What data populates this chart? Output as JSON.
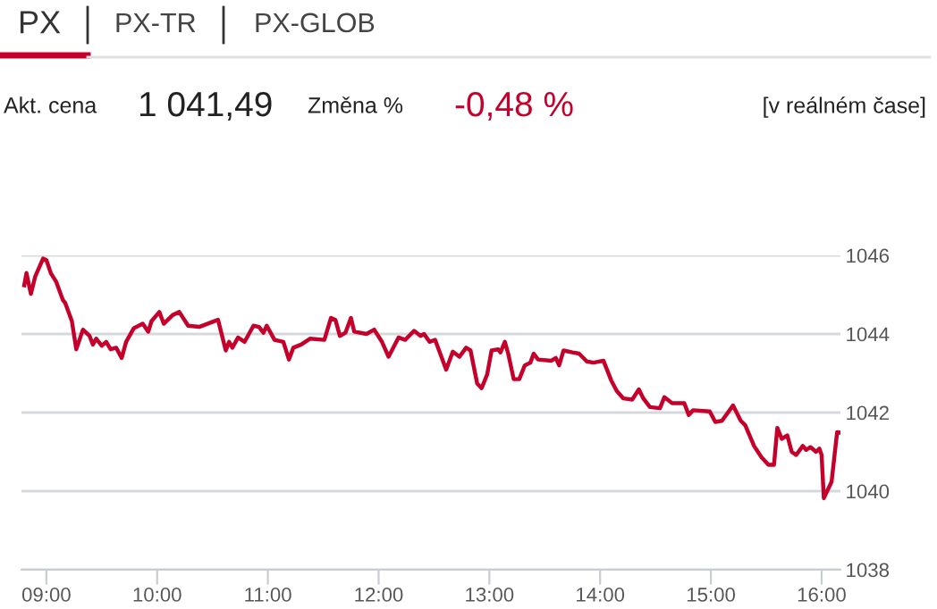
{
  "chart_data": {
    "type": "line",
    "annotations": [
      "PX",
      "PX-TR",
      "PX-GLOB",
      "Akt. cena",
      "1 041,49",
      "Změna %",
      "-0,48 %",
      "[v reálném čase]"
    ],
    "x": [
      8.8,
      8.82,
      8.86,
      8.9,
      8.97,
      9.0,
      9.04,
      9.09,
      9.15,
      9.17,
      9.23,
      9.27,
      9.33,
      9.39,
      9.42,
      9.45,
      9.5,
      9.54,
      9.58,
      9.63,
      9.68,
      9.72,
      9.79,
      9.87,
      9.92,
      9.95,
      10.02,
      10.06,
      10.14,
      10.2,
      10.28,
      10.38,
      10.55,
      10.62,
      10.65,
      10.68,
      10.73,
      10.79,
      10.87,
      10.92,
      10.96,
      10.99,
      11.06,
      11.14,
      11.19,
      11.23,
      11.3,
      11.38,
      11.51,
      11.57,
      11.61,
      11.65,
      11.7,
      11.75,
      11.78,
      11.89,
      11.96,
      12.03,
      12.09,
      12.18,
      12.24,
      12.32,
      12.38,
      12.41,
      12.46,
      12.51,
      12.61,
      12.67,
      12.73,
      12.79,
      12.83,
      12.89,
      12.93,
      12.98,
      13.02,
      13.08,
      13.1,
      13.14,
      13.17,
      13.22,
      13.27,
      13.32,
      13.37,
      13.4,
      13.44,
      13.56,
      13.6,
      13.63,
      13.67,
      13.75,
      13.81,
      13.88,
      13.94,
      14.03,
      14.1,
      14.15,
      14.21,
      14.29,
      14.35,
      14.39,
      14.45,
      14.54,
      14.58,
      14.65,
      14.76,
      14.8,
      14.84,
      14.99,
      15.04,
      15.1,
      15.2,
      15.27,
      15.31,
      15.39,
      15.46,
      15.52,
      15.57,
      15.6,
      15.64,
      15.69,
      15.73,
      15.77,
      15.83,
      15.86,
      15.9,
      15.95,
      15.98,
      16.0,
      16.02,
      16.09,
      16.14,
      16.17
    ],
    "series": [
      {
        "color": "#c4002b",
        "values": [
          1045.24,
          1045.55,
          1045.02,
          1045.47,
          1045.92,
          1045.88,
          1045.55,
          1045.32,
          1044.86,
          1044.79,
          1044.33,
          1043.61,
          1044.11,
          1043.95,
          1043.73,
          1043.88,
          1043.7,
          1043.8,
          1043.61,
          1043.65,
          1043.39,
          1043.8,
          1044.15,
          1044.26,
          1044.06,
          1044.33,
          1044.56,
          1044.26,
          1044.48,
          1044.56,
          1044.21,
          1044.18,
          1044.36,
          1043.58,
          1043.8,
          1043.65,
          1043.91,
          1043.8,
          1044.21,
          1044.18,
          1044.03,
          1044.21,
          1043.85,
          1043.8,
          1043.35,
          1043.65,
          1043.73,
          1043.88,
          1043.85,
          1044.41,
          1044.36,
          1043.95,
          1044.03,
          1044.41,
          1044.06,
          1044.0,
          1044.11,
          1043.8,
          1043.42,
          1043.91,
          1043.85,
          1044.08,
          1043.95,
          1044.0,
          1043.8,
          1043.85,
          1043.09,
          1043.55,
          1043.42,
          1043.65,
          1043.58,
          1042.74,
          1042.62,
          1042.97,
          1043.58,
          1043.61,
          1043.53,
          1043.8,
          1043.5,
          1042.85,
          1042.85,
          1043.2,
          1043.27,
          1043.5,
          1043.35,
          1043.32,
          1043.39,
          1043.2,
          1043.58,
          1043.53,
          1043.5,
          1043.3,
          1043.27,
          1043.32,
          1042.82,
          1042.55,
          1042.36,
          1042.33,
          1042.59,
          1042.36,
          1042.14,
          1042.11,
          1042.39,
          1042.24,
          1042.24,
          1041.94,
          1042.06,
          1042.03,
          1041.76,
          1041.79,
          1042.18,
          1041.79,
          1041.68,
          1041.15,
          1040.85,
          1040.67,
          1040.67,
          1041.61,
          1041.33,
          1041.42,
          1041.0,
          1040.92,
          1041.15,
          1041.05,
          1041.12,
          1041.0,
          1041.08,
          1040.92,
          1039.82,
          1040.24,
          1041.5,
          1041.49
        ]
      }
    ],
    "xlim": [
      8.775,
      16.17
    ],
    "xticks": [
      {
        "value": 9,
        "label": "09:00"
      },
      {
        "value": 10,
        "label": "10:00"
      },
      {
        "value": 11,
        "label": "11:00"
      },
      {
        "value": 12,
        "label": "12:00"
      },
      {
        "value": 13,
        "label": "13:00"
      },
      {
        "value": 14,
        "label": "14:00"
      },
      {
        "value": 15,
        "label": "15:00"
      },
      {
        "value": 16,
        "label": "16:00"
      }
    ],
    "ylim": [
      1038,
      1046
    ],
    "yticks": [
      1038,
      1040,
      1042,
      1044,
      1046
    ],
    "grid": "y",
    "legend": false,
    "marker": "none",
    "line_style": "solid"
  }
}
